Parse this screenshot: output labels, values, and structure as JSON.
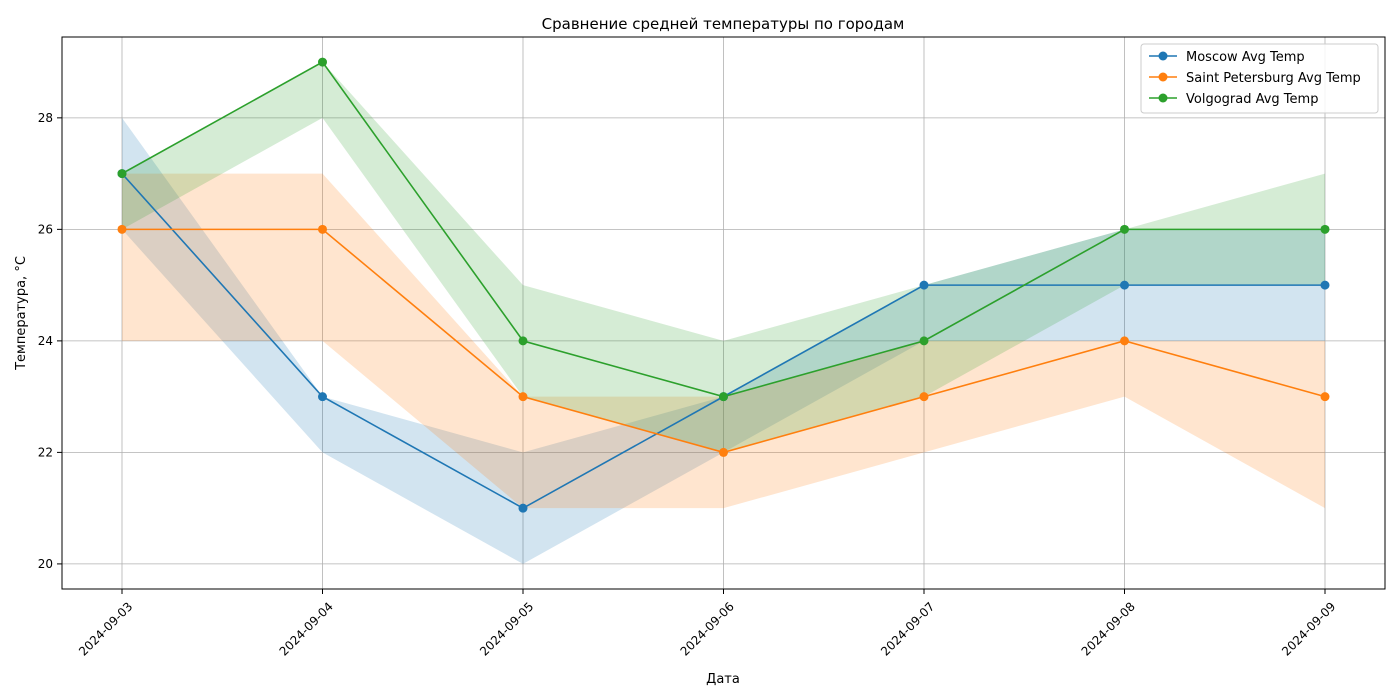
{
  "chart_data": {
    "type": "line",
    "title": "Сравнение средней температуры по городам",
    "xlabel": "Дата",
    "ylabel": "Температура, °C",
    "x": [
      "2024-09-03",
      "2024-09-04",
      "2024-09-05",
      "2024-09-06",
      "2024-09-07",
      "2024-09-08",
      "2024-09-09"
    ],
    "ylim": [
      19.55,
      29.45
    ],
    "yticks": [
      20,
      22,
      24,
      26,
      28
    ],
    "grid": true,
    "legend_position": "top-right",
    "series": [
      {
        "name": "Moscow Avg Temp",
        "color": "#1f77b4",
        "values": [
          27,
          23,
          21,
          23,
          25,
          25,
          25
        ],
        "band_low": [
          26,
          22,
          20,
          22,
          24,
          24,
          24
        ],
        "band_high": [
          28,
          23,
          22,
          23,
          25,
          26,
          26
        ]
      },
      {
        "name": "Saint Petersburg Avg Temp",
        "color": "#ff7f0e",
        "values": [
          26,
          26,
          23,
          22,
          23,
          24,
          23
        ],
        "band_low": [
          24,
          24,
          21,
          21,
          22,
          23,
          21
        ],
        "band_high": [
          27,
          27,
          23,
          23,
          24,
          24,
          24
        ]
      },
      {
        "name": "Volgograd Avg Temp",
        "color": "#2ca02c",
        "values": [
          27,
          29,
          24,
          23,
          24,
          26,
          26
        ],
        "band_low": [
          26,
          28,
          23,
          22,
          23,
          25,
          25
        ],
        "band_high": [
          27,
          29,
          25,
          24,
          25,
          26,
          27
        ]
      }
    ]
  }
}
